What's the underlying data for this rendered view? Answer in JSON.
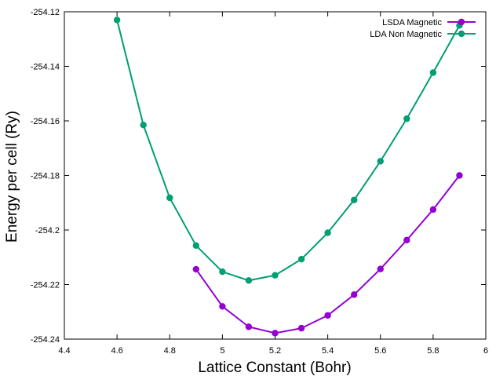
{
  "chart_data": {
    "type": "line",
    "title": "",
    "xlabel": "Lattice Constant (Bohr)",
    "ylabel": "Energy per cell (Ry)",
    "xlim": [
      4.4,
      6
    ],
    "ylim": [
      -254.24,
      -254.12
    ],
    "xticks": [
      "4.4",
      "4.6",
      "4.8",
      "5",
      "5.2",
      "5.4",
      "5.6",
      "5.8",
      "6"
    ],
    "yticks": [
      "-254.24",
      "-254.22",
      "-254.2",
      "-254.18",
      "-254.16",
      "-254.14",
      "-254.12"
    ],
    "grid": false,
    "legend_position": "top-right",
    "series": [
      {
        "name": "LSDA Magnetic",
        "color": "#9400d3",
        "x": [
          4.9,
          5.0,
          5.1,
          5.2,
          5.3,
          5.4,
          5.5,
          5.6,
          5.7,
          5.8,
          5.9
        ],
        "y": [
          -254.2144,
          -254.228,
          -254.2355,
          -254.2378,
          -254.236,
          -254.2313,
          -254.2237,
          -254.2143,
          -254.2037,
          -254.1925,
          -254.18
        ]
      },
      {
        "name": "LDA Non Magnetic",
        "color": "#009e73",
        "x": [
          4.6,
          4.7,
          4.8,
          4.9,
          5.0,
          5.1,
          5.2,
          5.3,
          5.4,
          5.5,
          5.6,
          5.7,
          5.8,
          5.9
        ],
        "y": [
          -254.123,
          -254.1615,
          -254.1882,
          -254.2057,
          -254.2153,
          -254.2185,
          -254.2166,
          -254.2107,
          -254.201,
          -254.189,
          -254.1748,
          -254.1592,
          -254.1423,
          -254.125
        ]
      }
    ]
  }
}
